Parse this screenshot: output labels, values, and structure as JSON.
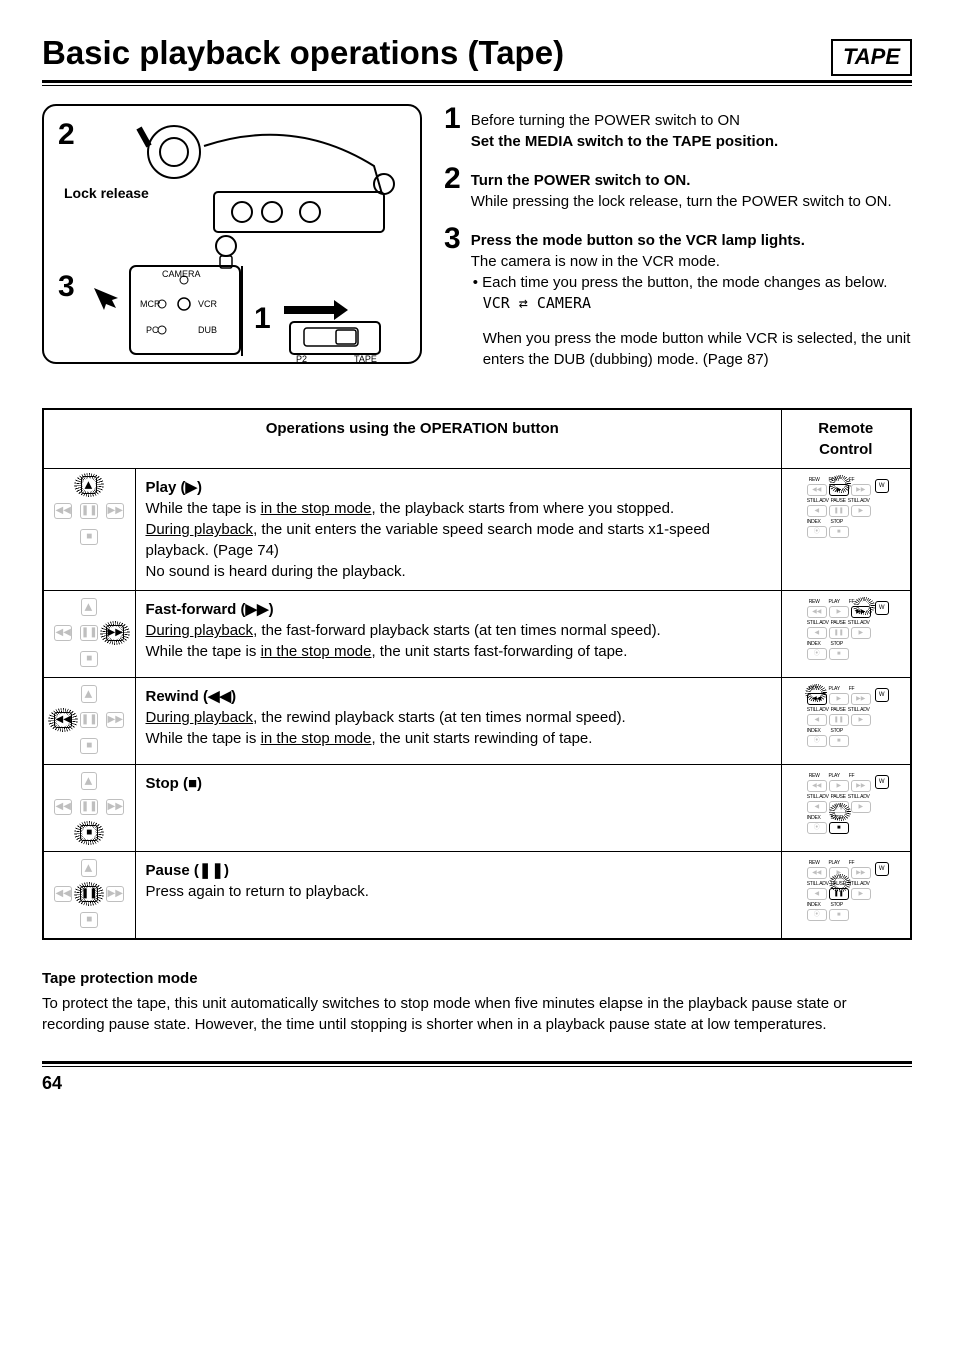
{
  "header": {
    "title": "Basic playback operations (Tape)",
    "badge": "TAPE"
  },
  "diagram": {
    "num_topleft": "2",
    "num_bottomleft": "3",
    "num_center": "1",
    "lock_release": "Lock release",
    "modes": {
      "camera": "CAMERA",
      "mcr": "MCR",
      "vcr": "VCR",
      "pc": "PC",
      "dub": "DUB"
    },
    "switch_labels": {
      "p2": "P2",
      "tape": "TAPE"
    }
  },
  "steps": [
    {
      "num": "1",
      "lines": [
        {
          "text": "Before turning the POWER switch to ON",
          "bold": false
        },
        {
          "text": "Set the MEDIA switch to the TAPE position.",
          "bold": true
        }
      ]
    },
    {
      "num": "2",
      "lines": [
        {
          "text": "Turn the POWER switch to ON.",
          "bold": true
        },
        {
          "text": "While pressing the lock release, turn the POWER switch to ON.",
          "bold": false
        }
      ]
    },
    {
      "num": "3",
      "lines": [
        {
          "text": "Press the mode button so the VCR lamp lights.",
          "bold": true
        },
        {
          "text": "The camera is now in the VCR mode.",
          "bold": false
        }
      ],
      "bullet": "Each time you press the button, the mode changes as below.",
      "cycle": "VCR ⇄ CAMERA",
      "tail": "When you press the mode button while VCR is selected, the unit enters the DUB (dubbing) mode. (Page 87)"
    }
  ],
  "table": {
    "header_main": "Operations using the OPERATION button",
    "header_remote": "Remote Control",
    "rows": [
      {
        "name": "Play (▶)",
        "body": [
          {
            "pre": "While the tape is ",
            "u": "in the stop mode",
            "post": ", the playback starts from where you stopped."
          },
          {
            "pre": "",
            "u": "During playback",
            "post": ", the unit enters the variable speed search mode and starts x1-speed playback. (Page 74)"
          },
          {
            "pre": "No sound is heard during the playback.",
            "u": "",
            "post": ""
          }
        ],
        "joy_active": [
          "up"
        ],
        "remote_active": [
          "play"
        ]
      },
      {
        "name": "Fast-forward (▶▶)",
        "body": [
          {
            "pre": "",
            "u": "During playback",
            "post": ", the fast-forward playback starts (at ten times normal speed)."
          },
          {
            "pre": "While the tape is ",
            "u": "in the stop mode",
            "post": ", the unit starts fast-forwarding of tape."
          }
        ],
        "joy_active": [
          "right"
        ],
        "remote_active": [
          "ff"
        ]
      },
      {
        "name": "Rewind (◀◀)",
        "body": [
          {
            "pre": "",
            "u": "During playback",
            "post": ", the rewind playback starts (at ten times normal speed)."
          },
          {
            "pre": "While the tape is ",
            "u": "in the stop mode",
            "post": ", the unit starts rewinding of tape."
          }
        ],
        "joy_active": [
          "left"
        ],
        "remote_active": [
          "rew"
        ]
      },
      {
        "name": "Stop (■)",
        "body": [],
        "joy_active": [
          "down"
        ],
        "remote_active": [
          "stop"
        ]
      },
      {
        "name": "Pause (❚❚)",
        "body": [
          {
            "pre": "Press again to return to playback.",
            "u": "",
            "post": ""
          }
        ],
        "joy_active": [
          "center"
        ],
        "remote_active": [
          "pause"
        ]
      }
    ]
  },
  "footnote": {
    "title": "Tape protection mode",
    "body": "To protect the tape, this unit automatically switches to stop mode when five minutes elapse in the playback pause state or recording pause state. However, the time until stopping is shorter when in a playback pause state at low temperatures."
  },
  "page_number": "64"
}
